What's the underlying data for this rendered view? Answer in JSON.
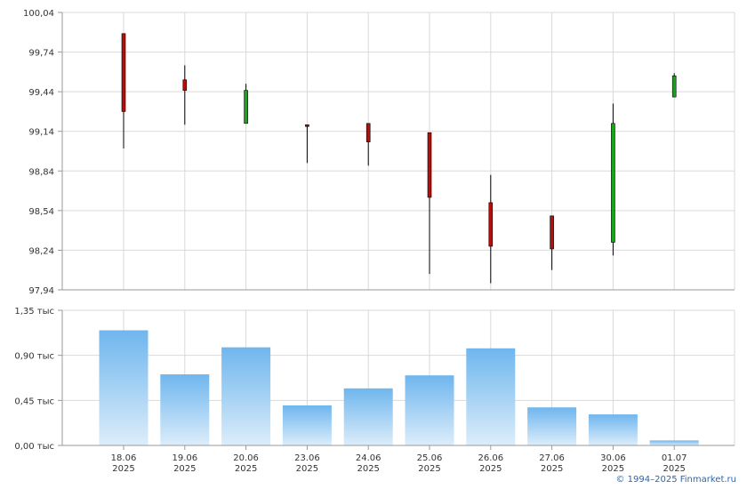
{
  "chart_data": [
    {
      "type": "candlestick",
      "categories": [
        "18.06 2025",
        "19.06 2025",
        "20.06 2025",
        "23.06 2025",
        "24.06 2025",
        "25.06 2025",
        "26.06 2025",
        "27.06 2025",
        "30.06 2025",
        "01.07 2025"
      ],
      "y_tick_labels": [
        "100,04",
        "99,74",
        "99,44",
        "99,14",
        "98,84",
        "98,54",
        "98,24",
        "97,94"
      ],
      "y_ticks": [
        100.04,
        99.74,
        99.44,
        99.14,
        98.84,
        98.54,
        98.24,
        97.94
      ],
      "ylim": [
        97.94,
        100.04
      ],
      "grid": true,
      "candles": [
        {
          "open": 99.88,
          "close": 99.29,
          "high": 99.88,
          "low": 99.01,
          "direction": "down"
        },
        {
          "open": 99.53,
          "close": 99.45,
          "high": 99.64,
          "low": 99.19,
          "direction": "down"
        },
        {
          "open": 99.2,
          "close": 99.45,
          "high": 99.5,
          "low": 99.2,
          "direction": "up"
        },
        {
          "open": 99.19,
          "close": 99.18,
          "high": 99.19,
          "low": 98.9,
          "direction": "down"
        },
        {
          "open": 99.2,
          "close": 99.06,
          "high": 99.2,
          "low": 98.88,
          "direction": "down"
        },
        {
          "open": 99.13,
          "close": 98.64,
          "high": 99.13,
          "low": 98.06,
          "direction": "down"
        },
        {
          "open": 98.6,
          "close": 98.27,
          "high": 98.81,
          "low": 97.99,
          "direction": "down"
        },
        {
          "open": 98.5,
          "close": 98.25,
          "high": 98.5,
          "low": 98.09,
          "direction": "down"
        },
        {
          "open": 98.3,
          "close": 99.2,
          "high": 99.35,
          "low": 98.2,
          "direction": "up"
        },
        {
          "open": 99.4,
          "close": 99.56,
          "high": 99.58,
          "low": 99.4,
          "direction": "up"
        }
      ],
      "colors": {
        "up": "#1aa31a",
        "down": "#b3100c",
        "wick": "#000000"
      }
    },
    {
      "type": "bar",
      "categories": [
        "18.06 2025",
        "19.06 2025",
        "20.06 2025",
        "23.06 2025",
        "24.06 2025",
        "25.06 2025",
        "26.06 2025",
        "27.06 2025",
        "30.06 2025",
        "01.07 2025"
      ],
      "values": [
        1.15,
        0.71,
        0.98,
        0.4,
        0.57,
        0.7,
        0.97,
        0.38,
        0.31,
        0.05
      ],
      "y_tick_labels": [
        "1,35 тыс",
        "0,90 тыс",
        "0,45 тыс",
        "0,00 тыс"
      ],
      "y_ticks": [
        1.35,
        0.9,
        0.45,
        0.0
      ],
      "ylim": [
        0,
        1.35
      ],
      "grid": true,
      "colors": {
        "bar_top": "#6fb6ee",
        "bar_bottom": "#dcedfa"
      }
    }
  ],
  "copyright": "© 1994–2025 Finmarket.ru"
}
